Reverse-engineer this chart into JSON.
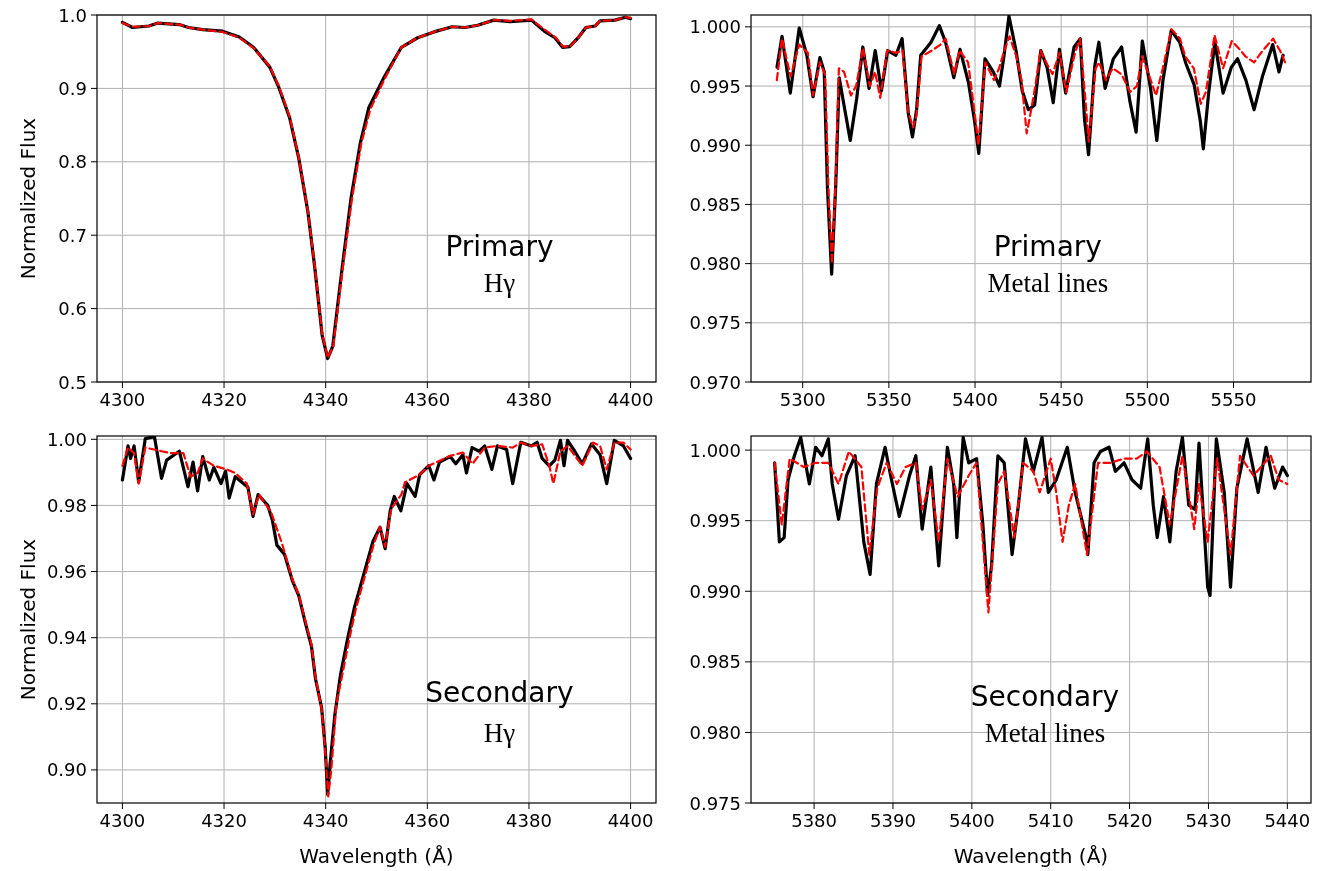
{
  "chart_data": [
    {
      "type": "line",
      "ylabel": "Normalized Flux",
      "annotations": [
        "Primary",
        "Hγ"
      ],
      "grid": true,
      "xlim": [
        4295,
        4405
      ],
      "xticks": [
        4300,
        4320,
        4340,
        4360,
        4380,
        4400
      ],
      "ylim": [
        0.5,
        1.0
      ],
      "yticks": [
        0.5,
        0.6,
        0.7,
        0.8,
        0.9,
        {
          "value": 1,
          "label": "1.0"
        }
      ],
      "series": [
        {
          "color": "#000000",
          "line_style": "solid",
          "x": [
            4300,
            4302,
            4305.2,
            4307,
            4311.2,
            4313,
            4315.8,
            4319.7,
            4323,
            4325.8,
            4329,
            4330.8,
            4332.9,
            4334.7,
            4336.5,
            4337.9,
            4339.3,
            4340.4,
            4341.4,
            4343.2,
            4345,
            4346.8,
            4348.5,
            4351.4,
            4354.9,
            4358.1,
            4361.3,
            4364.9,
            4367.4,
            4369.9,
            4373.1,
            4376.3,
            4380.5,
            4383,
            4385.1,
            4386.6,
            4388,
            4389.8,
            4391.2,
            4393,
            4394,
            4396.9,
            4399,
            4400
          ],
          "values": [
            0.99,
            0.983,
            0.985,
            0.989,
            0.987,
            0.983,
            0.98,
            0.978,
            0.97,
            0.956,
            0.929,
            0.901,
            0.86,
            0.805,
            0.732,
            0.653,
            0.564,
            0.532,
            0.549,
            0.653,
            0.751,
            0.825,
            0.874,
            0.914,
            0.956,
            0.969,
            0.977,
            0.984,
            0.983,
            0.986,
            0.993,
            0.991,
            0.993,
            0.978,
            0.969,
            0.956,
            0.957,
            0.97,
            0.983,
            0.985,
            0.992,
            0.993,
            0.997,
            0.995
          ]
        },
        {
          "color": "#ff0000",
          "line_style": "dashed",
          "x": [
            4300,
            4302,
            4305.2,
            4307,
            4311.2,
            4313,
            4315.8,
            4319.7,
            4323,
            4325.8,
            4329,
            4330.8,
            4332.9,
            4334.7,
            4336.5,
            4337.9,
            4339.3,
            4340.4,
            4341.5,
            4343.3,
            4345.2,
            4347,
            4348.8,
            4351.6,
            4354.9,
            4358.1,
            4361.3,
            4364.9,
            4367.4,
            4369.9,
            4373.1,
            4376.3,
            4380.5,
            4383.3,
            4385.3,
            4386.7,
            4388.1,
            4389.8,
            4391.2,
            4393,
            4394,
            4396.9,
            4399,
            4400
          ],
          "values": [
            0.989,
            0.984,
            0.985,
            0.989,
            0.987,
            0.983,
            0.98,
            0.977,
            0.969,
            0.955,
            0.93,
            0.903,
            0.862,
            0.806,
            0.733,
            0.655,
            0.566,
            0.533,
            0.549,
            0.652,
            0.751,
            0.825,
            0.872,
            0.913,
            0.956,
            0.969,
            0.977,
            0.984,
            0.983,
            0.986,
            0.993,
            0.992,
            0.994,
            0.979,
            0.969,
            0.957,
            0.957,
            0.97,
            0.983,
            0.985,
            0.992,
            0.993,
            0.997,
            0.996
          ]
        }
      ]
    },
    {
      "type": "line",
      "annotations": [
        "Primary",
        "Metal lines"
      ],
      "grid": true,
      "xlim": [
        5270,
        5595
      ],
      "xticks": [
        5300,
        5350,
        5400,
        5450,
        5500,
        5550
      ],
      "ylim": [
        0.97,
        1.001
      ],
      "yticks": [
        {
          "value": 0.97,
          "label": "0.970"
        },
        0.975,
        {
          "value": 0.98,
          "label": "0.980"
        },
        0.985,
        {
          "value": 0.99,
          "label": "0.990"
        },
        0.995,
        {
          "value": 1,
          "label": "1.000"
        }
      ],
      "series": [
        {
          "color": "#000000",
          "line_style": "solid",
          "x": [
            5285.1,
            5288,
            5292.8,
            5298,
            5302.4,
            5306,
            5310,
            5312.5,
            5314.4,
            5316.8,
            5319.2,
            5321.2,
            5323.6,
            5327.6,
            5331.3,
            5334.9,
            5338.5,
            5342.1,
            5345.7,
            5349.3,
            5354.1,
            5357.7,
            5361.3,
            5363.7,
            5366.1,
            5368.5,
            5374.5,
            5379.3,
            5382.9,
            5387.7,
            5391.3,
            5396.2,
            5399.8,
            5402.2,
            5405.8,
            5410.6,
            5414.2,
            5416.6,
            5419.7,
            5423.8,
            5427.4,
            5431,
            5434.6,
            5438.2,
            5441.8,
            5445.4,
            5449,
            5452.6,
            5457.5,
            5461.1,
            5463.5,
            5465.9,
            5469.5,
            5471.9,
            5475.5,
            5480.3,
            5485.1,
            5489.9,
            5493.5,
            5497.1,
            5501.9,
            5505.5,
            5509.1,
            5513.9,
            5518.8,
            5522.4,
            5527.2,
            5530.8,
            5532.5,
            5535.6,
            5539.2,
            5544,
            5548.8,
            5552.4,
            5557.2,
            5562,
            5566.8,
            5572.8,
            5576.4,
            5578.8
          ],
          "values": [
            0.9966,
            0.9992,
            0.9944,
            0.9999,
            0.9976,
            0.9941,
            0.9974,
            0.9962,
            0.9863,
            0.9791,
            0.9867,
            0.9957,
            0.9937,
            0.9904,
            0.9939,
            0.9983,
            0.9948,
            0.998,
            0.9946,
            0.998,
            0.9976,
            0.999,
            0.9927,
            0.9907,
            0.993,
            0.9976,
            0.9987,
            1.0001,
            0.9987,
            0.9957,
            0.9981,
            0.9953,
            0.992,
            0.9893,
            0.9973,
            0.9962,
            0.995,
            0.9973,
            1.0009,
            0.998,
            0.9946,
            0.993,
            0.9934,
            0.998,
            0.9966,
            0.9936,
            0.9981,
            0.9944,
            0.9983,
            0.999,
            0.9923,
            0.9892,
            0.9967,
            0.9987,
            0.9948,
            0.9973,
            0.9983,
            0.9937,
            0.9911,
            0.9988,
            0.9948,
            0.9904,
            0.9955,
            0.9997,
            0.9987,
            0.9969,
            0.9951,
            0.992,
            0.9897,
            0.9944,
            0.9987,
            0.9944,
            0.9966,
            0.9973,
            0.9955,
            0.993,
            0.9958,
            0.9985,
            0.9962,
            0.9976
          ]
        },
        {
          "color": "#ff0000",
          "line_style": "dashed",
          "x": [
            5285,
            5288,
            5293,
            5298,
            5303,
            5306,
            5310,
            5313,
            5315,
            5317,
            5319,
            5321,
            5324,
            5328,
            5331,
            5335,
            5339,
            5342,
            5345,
            5349,
            5354,
            5358,
            5361,
            5364,
            5366,
            5369,
            5375,
            5380,
            5383,
            5388,
            5391,
            5396,
            5400,
            5402,
            5406,
            5411,
            5414,
            5417,
            5420,
            5424,
            5427,
            5430,
            5432,
            5435,
            5438,
            5442,
            5445,
            5449,
            5453,
            5458,
            5461,
            5464,
            5466,
            5470,
            5472,
            5476,
            5480,
            5485,
            5490,
            5494,
            5497,
            5502,
            5505,
            5509,
            5514,
            5519,
            5522,
            5527,
            5531,
            5534,
            5539,
            5544,
            5549,
            5553,
            5557,
            5562,
            5567,
            5573,
            5577,
            5580
          ],
          "values": [
            0.9955,
            0.999,
            0.9958,
            0.9985,
            0.9978,
            0.9942,
            0.997,
            0.996,
            0.986,
            0.98,
            0.9865,
            0.9965,
            0.9962,
            0.9942,
            0.995,
            0.9982,
            0.995,
            0.9962,
            0.994,
            0.998,
            0.9978,
            0.998,
            0.993,
            0.9915,
            0.9925,
            0.9975,
            0.998,
            0.9985,
            0.999,
            0.996,
            0.998,
            0.997,
            0.9925,
            0.99,
            0.997,
            0.9955,
            0.9965,
            0.998,
            0.9992,
            0.9975,
            0.9955,
            0.991,
            0.9925,
            0.995,
            0.998,
            0.9968,
            0.996,
            0.9978,
            0.9945,
            0.9978,
            0.999,
            0.994,
            0.9903,
            0.9965,
            0.997,
            0.9955,
            0.9965,
            0.996,
            0.9945,
            0.995,
            0.9975,
            0.9955,
            0.9942,
            0.9965,
            0.9998,
            0.999,
            0.9975,
            0.9965,
            0.9935,
            0.9945,
            0.9993,
            0.9965,
            0.9988,
            0.9982,
            0.9975,
            0.997,
            0.998,
            0.999,
            0.998,
            0.997
          ]
        }
      ]
    },
    {
      "type": "line",
      "ylabel": "Normalized Flux",
      "xlabel": "Wavelength (Å)",
      "annotations": [
        "Secondary",
        "Hγ"
      ],
      "grid": true,
      "xlim": [
        4295,
        4405
      ],
      "xticks": [
        4300,
        4320,
        4340,
        4360,
        4380,
        4400
      ],
      "ylim": [
        0.89,
        1.001
      ],
      "yticks": [
        {
          "value": 0.9,
          "label": "0.90"
        },
        0.92,
        0.94,
        0.96,
        0.98,
        {
          "value": 1,
          "label": "1.00"
        }
      ],
      "series": [
        {
          "color": "#000000",
          "line_style": "solid",
          "x": [
            4300,
            4301.1,
            4301.6,
            4302.3,
            4303.2,
            4304.5,
            4306.3,
            4307.7,
            4308.7,
            4311.2,
            4312.9,
            4313.9,
            4314.8,
            4315.8,
            4317.1,
            4318,
            4319.4,
            4320.3,
            4321,
            4322.2,
            4324.7,
            4325.7,
            4326.7,
            4328.6,
            4329.5,
            4330.4,
            4331.9,
            4333.5,
            4334.7,
            4336.1,
            4337.2,
            4338,
            4339.2,
            4339.9,
            4340.4,
            4340.9,
            4341.8,
            4342.9,
            4344.3,
            4345.7,
            4347.5,
            4349.3,
            4350.7,
            4351.7,
            4352.7,
            4353.5,
            4354.8,
            4356,
            4357.6,
            4358.5,
            4360.3,
            4361.3,
            4362.4,
            4364.5,
            4365.6,
            4367,
            4367.7,
            4368.8,
            4370.2,
            4371.3,
            4372.7,
            4373.8,
            4375.6,
            4376.8,
            4378.4,
            4380.5,
            4381.6,
            4382.6,
            4384,
            4385.1,
            4386.2,
            4386.9,
            4387.6,
            4389,
            4390.5,
            4392.3,
            4394,
            4395.3,
            4396.8,
            4398.6,
            4400
          ],
          "values": [
            0.9877,
            0.998,
            0.9942,
            0.998,
            0.9871,
            1.0002,
            1.0008,
            0.9882,
            0.9937,
            0.9964,
            0.9857,
            0.9931,
            0.9844,
            0.9948,
            0.9877,
            0.9915,
            0.9866,
            0.9904,
            0.9822,
            0.9887,
            0.9855,
            0.9767,
            0.9833,
            0.98,
            0.9756,
            0.968,
            0.9652,
            0.957,
            0.9527,
            0.9439,
            0.9374,
            0.9275,
            0.9188,
            0.9068,
            0.8926,
            0.9024,
            0.9166,
            0.9286,
            0.9396,
            0.9494,
            0.9592,
            0.9691,
            0.9734,
            0.9669,
            0.9784,
            0.9827,
            0.9784,
            0.9866,
            0.9827,
            0.9893,
            0.992,
            0.9877,
            0.9931,
            0.9948,
            0.9926,
            0.9953,
            0.9898,
            0.9975,
            0.9964,
            0.998,
            0.9909,
            0.998,
            0.9969,
            0.9866,
            0.9991,
            0.998,
            0.9991,
            0.9942,
            0.992,
            0.9937,
            0.9997,
            0.992,
            0.9997,
            0.9964,
            0.9926,
            0.9986,
            0.9953,
            0.9866,
            0.9997,
            0.998,
            0.9942
          ]
        },
        {
          "color": "#ff0000",
          "line_style": "dashed",
          "x": [
            4300,
            4301.1,
            4302.3,
            4303.2,
            4304.5,
            4307.7,
            4309.5,
            4312,
            4313.4,
            4314.8,
            4315.8,
            4318,
            4320.5,
            4322.2,
            4324.5,
            4325.7,
            4326.9,
            4329.3,
            4331.4,
            4333.5,
            4334.7,
            4336.1,
            4337.2,
            4338,
            4339.2,
            4339.9,
            4340.5,
            4341.1,
            4342.1,
            4343.1,
            4344.5,
            4345.9,
            4347.7,
            4349.5,
            4350.7,
            4351.7,
            4352.9,
            4354.9,
            4355.6,
            4358.5,
            4360.3,
            4362.4,
            4364.5,
            4367,
            4368.9,
            4371.3,
            4373.8,
            4376.8,
            4378.4,
            4380.5,
            4382.6,
            4384,
            4384.8,
            4386.2,
            4387.6,
            4390.5,
            4392.6,
            4394,
            4395.3,
            4396.8,
            4398.6,
            4400
          ],
          "values": [
            0.992,
            0.9975,
            0.9958,
            0.9866,
            0.9975,
            0.9964,
            0.9958,
            0.9958,
            0.9887,
            0.9898,
            0.9942,
            0.992,
            0.9909,
            0.9898,
            0.9866,
            0.9773,
            0.9833,
            0.9778,
            0.9685,
            0.9575,
            0.953,
            0.9445,
            0.938,
            0.928,
            0.9185,
            0.906,
            0.892,
            0.9,
            0.9199,
            0.9275,
            0.9385,
            0.9485,
            0.9585,
            0.9685,
            0.9735,
            0.9675,
            0.979,
            0.9833,
            0.987,
            0.9893,
            0.992,
            0.9935,
            0.995,
            0.996,
            0.9926,
            0.9975,
            0.998,
            0.9975,
            0.999,
            0.998,
            0.9985,
            0.992,
            0.9866,
            0.9964,
            0.998,
            0.992,
            0.999,
            0.998,
            0.9909,
            0.999,
            0.999,
            0.9969
          ]
        }
      ]
    },
    {
      "type": "line",
      "xlabel": "Wavelength (Å)",
      "annotations": [
        "Secondary",
        "Metal lines"
      ],
      "grid": true,
      "xlim": [
        5372,
        5443
      ],
      "xticks": [
        5380,
        5390,
        5400,
        5410,
        5420,
        5430,
        5440
      ],
      "ylim": [
        0.975,
        1.001
      ],
      "yticks": [
        0.975,
        {
          "value": 0.98,
          "label": "0.980"
        },
        0.985,
        {
          "value": 0.99,
          "label": "0.990"
        },
        0.995,
        {
          "value": 1,
          "label": "1.000"
        }
      ],
      "series": [
        {
          "color": "#000000",
          "line_style": "solid",
          "x": [
            5375,
            5375.6,
            5376.2,
            5376.7,
            5377.5,
            5378.3,
            5379.4,
            5380.2,
            5381,
            5381.8,
            5382.3,
            5383.1,
            5384.1,
            5385.2,
            5386.3,
            5387.1,
            5387.9,
            5389,
            5389.7,
            5390.8,
            5392.1,
            5392.9,
            5393.7,
            5394.8,
            5395.8,
            5396.9,
            5397.7,
            5398.1,
            5398.9,
            5399.6,
            5400.6,
            5401.4,
            5402,
            5402.5,
            5403.3,
            5404.1,
            5405.1,
            5405.9,
            5406.8,
            5407.8,
            5408.9,
            5409.7,
            5410.7,
            5412.1,
            5413.1,
            5414.5,
            5414.7,
            5415.5,
            5416.3,
            5417.4,
            5418.2,
            5419.3,
            5420.3,
            5421.4,
            5422.3,
            5423,
            5423.5,
            5424.3,
            5425.1,
            5425.9,
            5426.7,
            5427.5,
            5428.3,
            5428.8,
            5429.9,
            5430.2,
            5431,
            5432,
            5432.8,
            5433.6,
            5434.9,
            5436.3,
            5437.3,
            5438.4,
            5439.4,
            5440
          ],
          "values": [
            0.9991,
            0.9935,
            0.9938,
            0.9979,
            0.9996,
            1.0009,
            0.9976,
            1.0002,
            0.9996,
            1.0008,
            0.9976,
            0.9951,
            0.9982,
            0.9996,
            0.9935,
            0.9912,
            0.9976,
            1.0002,
            0.9982,
            0.9953,
            0.9982,
            0.9996,
            0.9944,
            0.9988,
            0.9918,
            1.0002,
            0.9976,
            0.9938,
            1.0009,
            0.9991,
            0.9994,
            0.9947,
            0.9897,
            0.9918,
            0.9996,
            0.9991,
            0.9926,
            0.9961,
            1.0008,
            0.9985,
            1.0009,
            0.997,
            0.9979,
            1.0002,
            0.997,
            0.9938,
            0.9926,
            0.9991,
            0.9999,
            1.0002,
            0.9985,
            0.9991,
            0.9979,
            0.9973,
            1.0008,
            0.9961,
            0.9938,
            0.9967,
            0.9935,
            0.9985,
            1.0009,
            0.9961,
            0.9958,
            1.0005,
            0.9903,
            0.9897,
            1.0008,
            0.997,
            0.9903,
            0.9973,
            1.0008,
            0.997,
            1.0002,
            0.9973,
            0.9988,
            0.9982
          ]
        },
        {
          "color": "#ff0000",
          "line_style": "dashed",
          "x": [
            5375,
            5375.9,
            5376.9,
            5378.7,
            5380.2,
            5381.8,
            5383.1,
            5384.4,
            5386,
            5387,
            5388,
            5389.2,
            5390.5,
            5391.6,
            5392.9,
            5393.7,
            5394.8,
            5395.8,
            5396.9,
            5398.2,
            5399.6,
            5400.6,
            5402.1,
            5403.3,
            5404.1,
            5405.4,
            5406.5,
            5407.8,
            5408.6,
            5410,
            5410.7,
            5411.5,
            5412.3,
            5413.1,
            5414.6,
            5416,
            5417.6,
            5419.3,
            5420.9,
            5422.2,
            5423.8,
            5425.1,
            5426.7,
            5428.2,
            5428.8,
            5429.9,
            5431.1,
            5432.8,
            5434,
            5435.7,
            5437.9,
            5438.9,
            5440
          ],
          "values": [
            0.9991,
            0.9947,
            0.9994,
            0.9988,
            0.9991,
            0.9991,
            0.9976,
            0.9999,
            0.9988,
            0.9926,
            0.9973,
            0.9991,
            0.9976,
            0.9988,
            0.9991,
            0.9958,
            0.9979,
            0.9935,
            0.9994,
            0.9967,
            0.9982,
            0.9991,
            0.9885,
            0.9976,
            0.9985,
            0.9938,
            0.9991,
            0.9985,
            0.997,
            0.9994,
            0.997,
            0.9935,
            0.9961,
            0.9976,
            0.9926,
            0.9991,
            0.9991,
            0.9994,
            0.9994,
            0.9999,
            0.9988,
            0.9947,
            0.9996,
            0.9944,
            0.9976,
            0.9935,
            0.9994,
            0.9926,
            0.9996,
            0.9982,
            0.9996,
            0.9979,
            0.9976
          ]
        }
      ]
    }
  ]
}
